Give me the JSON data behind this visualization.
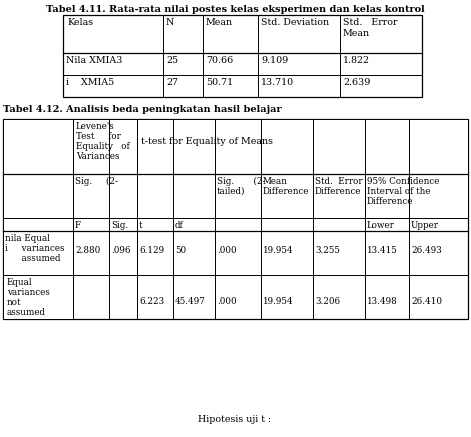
{
  "title1": "Tabel 4.11. Rata-rata nilai postes kelas eksperimen dan kelas kontrol",
  "title2": "Tabel 4.12. Analisis beda peningkatan hasil belajar",
  "footer": "Hipotesis uji t :",
  "bg_color": "#ffffff"
}
